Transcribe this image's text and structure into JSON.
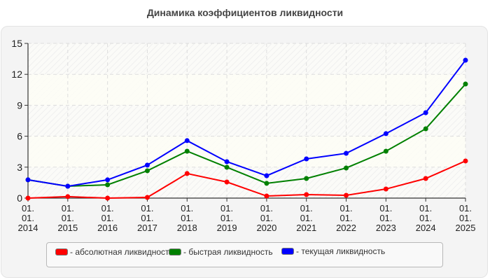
{
  "title": "Динамика коэффициентов ликвидности",
  "chart_data": {
    "type": "line",
    "title": "Динамика коэффициентов ликвидности",
    "xlabel": "",
    "ylabel": "",
    "ylim": [
      0,
      15
    ],
    "yticks": [
      0,
      3,
      6,
      9,
      12,
      15
    ],
    "grid": true,
    "legend_position": "bottom",
    "categories": [
      "01.01.2014",
      "01.01.2015",
      "01.01.2016",
      "01.01.2017",
      "01.01.2018",
      "01.01.2019",
      "01.01.2020",
      "01.01.2021",
      "01.01.2022",
      "01.01.2023",
      "01.01.2024",
      "01.01.2025"
    ],
    "x_tick_lines": [
      [
        "01.",
        "01.",
        "2014"
      ],
      [
        "01.",
        "01.",
        "2015"
      ],
      [
        "01.",
        "01.",
        "2016"
      ],
      [
        "01.",
        "01.",
        "2017"
      ],
      [
        "01.",
        "01.",
        "2018"
      ],
      [
        "01.",
        "01.",
        "2019"
      ],
      [
        "01.",
        "01.",
        "2020"
      ],
      [
        "01.",
        "01.",
        "2021"
      ],
      [
        "01.",
        "01.",
        "2022"
      ],
      [
        "01.",
        "01.",
        "2023"
      ],
      [
        "01.",
        "01.",
        "2024"
      ],
      [
        "01.",
        "01.",
        "2025"
      ]
    ],
    "series": [
      {
        "name": "абсолютная ликвидность",
        "color": "#ff0000",
        "values": [
          0.0,
          0.14,
          0.0,
          0.07,
          2.38,
          1.56,
          0.2,
          0.34,
          0.27,
          0.88,
          1.9,
          3.6
        ]
      },
      {
        "name": "быстрая ликвидность",
        "color": "#008000",
        "values": [
          1.77,
          1.15,
          1.29,
          2.65,
          4.55,
          2.99,
          1.43,
          1.9,
          2.92,
          4.55,
          6.72,
          11.06
        ]
      },
      {
        "name": "текущая ликвидность",
        "color": "#0000ff",
        "values": [
          1.77,
          1.15,
          1.77,
          3.2,
          5.57,
          3.53,
          2.17,
          3.8,
          4.34,
          6.25,
          8.28,
          13.37
        ]
      }
    ]
  },
  "legend": {
    "items": [
      {
        "label": "- абсолютная ликвидность",
        "color": "#ff0000"
      },
      {
        "label": "- быстрая ликвидность",
        "color": "#008000"
      },
      {
        "label": "- текущая ликвидность",
        "color": "#0000ff"
      }
    ]
  }
}
